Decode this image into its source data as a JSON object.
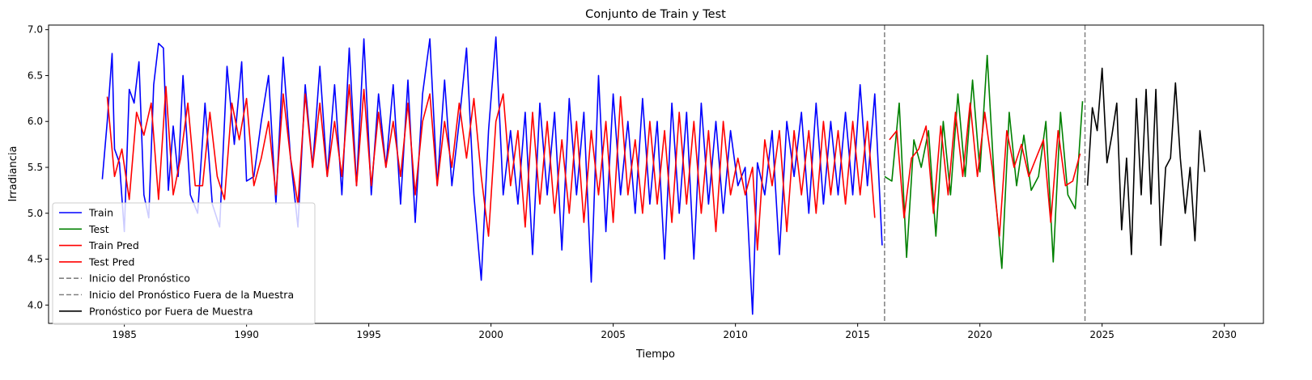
{
  "chart_data": {
    "type": "line",
    "title": "Conjunto de Train y Test",
    "xlabel": "Tiempo",
    "ylabel": "Irradiancia",
    "xlim": [
      1981.9,
      2031.6
    ],
    "ylim": [
      3.8,
      7.05
    ],
    "xticks": [
      1985,
      1990,
      1995,
      2000,
      2005,
      2010,
      2015,
      2020,
      2025,
      2030
    ],
    "yticks": [
      4.0,
      4.5,
      5.0,
      5.5,
      6.0,
      6.5,
      7.0
    ],
    "grid": false,
    "legend_position": "lower-left",
    "series": [
      {
        "name": "Train",
        "color": "#0000ff",
        "x": [
          1984.1,
          1984.3,
          1984.5,
          1984.6,
          1984.8,
          1985.0,
          1985.2,
          1985.4,
          1985.6,
          1985.8,
          1986.0,
          1986.2,
          1986.4,
          1986.6,
          1986.8,
          1987.0,
          1987.2,
          1987.4,
          1987.7,
          1988.0,
          1988.3,
          1988.6,
          1988.9,
          1989.2,
          1989.5,
          1989.8,
          1990.0,
          1990.3,
          1990.6,
          1990.9,
          1991.2,
          1991.5,
          1991.8,
          1992.1,
          1992.4,
          1992.7,
          1993.0,
          1993.3,
          1993.6,
          1993.9,
          1994.2,
          1994.5,
          1994.8,
          1995.1,
          1995.4,
          1995.7,
          1996.0,
          1996.3,
          1996.6,
          1996.9,
          1997.2,
          1997.5,
          1997.8,
          1998.1,
          1998.4,
          1998.7,
          1999.0,
          1999.3,
          1999.6,
          1999.9,
          2000.2,
          2000.5,
          2000.8,
          2001.1,
          2001.4,
          2001.7,
          2002.0,
          2002.3,
          2002.6,
          2002.9,
          2003.2,
          2003.5,
          2003.8,
          2004.1,
          2004.4,
          2004.7,
          2005.0,
          2005.3,
          2005.6,
          2005.9,
          2006.2,
          2006.5,
          2006.8,
          2007.1,
          2007.4,
          2007.7,
          2008.0,
          2008.3,
          2008.6,
          2008.9,
          2009.2,
          2009.5,
          2009.8,
          2010.1,
          2010.4,
          2010.7,
          2010.9,
          2011.2,
          2011.5,
          2011.8,
          2012.1,
          2012.4,
          2012.7,
          2013.0,
          2013.3,
          2013.6,
          2013.9,
          2014.2,
          2014.5,
          2014.8,
          2015.1,
          2015.4,
          2015.7,
          2016.0
        ],
        "y": [
          5.37,
          6.0,
          6.74,
          5.7,
          5.55,
          4.8,
          6.35,
          6.2,
          6.65,
          5.2,
          4.95,
          6.4,
          6.85,
          6.8,
          5.25,
          5.95,
          5.4,
          6.5,
          5.2,
          5.0,
          6.2,
          5.1,
          4.85,
          6.6,
          5.75,
          6.65,
          5.35,
          5.4,
          6.0,
          6.5,
          5.1,
          6.7,
          5.6,
          4.85,
          6.4,
          5.5,
          6.6,
          5.4,
          6.4,
          5.2,
          6.8,
          5.3,
          6.9,
          5.2,
          6.3,
          5.5,
          6.4,
          5.1,
          6.45,
          4.9,
          6.3,
          6.9,
          5.3,
          6.45,
          5.3,
          6.0,
          6.8,
          5.2,
          4.27,
          5.9,
          6.92,
          5.2,
          5.9,
          5.1,
          6.1,
          4.55,
          6.2,
          5.2,
          6.1,
          4.6,
          6.25,
          5.2,
          6.1,
          4.25,
          6.5,
          4.8,
          6.3,
          5.2,
          6.0,
          5.0,
          6.25,
          5.1,
          6.0,
          4.5,
          6.2,
          5.0,
          6.1,
          4.5,
          6.2,
          5.1,
          6.0,
          5.0,
          5.9,
          5.3,
          5.5,
          3.9,
          5.55,
          5.2,
          5.9,
          4.55,
          6.0,
          5.4,
          6.1,
          5.0,
          6.2,
          5.1,
          6.0,
          5.2,
          6.1,
          5.2,
          6.4,
          5.3,
          6.3,
          4.65
        ]
      },
      {
        "name": "Test",
        "color": "#008000",
        "x": [
          2016.1,
          2016.4,
          2016.7,
          2017.0,
          2017.3,
          2017.6,
          2017.9,
          2018.2,
          2018.5,
          2018.8,
          2019.1,
          2019.4,
          2019.7,
          2020.0,
          2020.3,
          2020.6,
          2020.9,
          2021.2,
          2021.5,
          2021.8,
          2022.1,
          2022.4,
          2022.7,
          2023.0,
          2023.3,
          2023.6,
          2023.9,
          2024.2
        ],
        "y": [
          5.4,
          5.35,
          6.2,
          4.52,
          5.8,
          5.5,
          5.9,
          4.75,
          6.0,
          5.2,
          6.3,
          5.4,
          6.45,
          5.45,
          6.72,
          5.3,
          4.4,
          6.1,
          5.3,
          5.85,
          5.25,
          5.4,
          6.0,
          4.47,
          6.1,
          5.2,
          5.05,
          6.22
        ]
      },
      {
        "name": "Train Pred",
        "color": "#ff0000",
        "x": [
          1984.3,
          1984.6,
          1984.9,
          1985.2,
          1985.5,
          1985.8,
          1986.1,
          1986.4,
          1986.7,
          1987.0,
          1987.3,
          1987.6,
          1987.9,
          1988.2,
          1988.5,
          1988.8,
          1989.1,
          1989.4,
          1989.7,
          1990.0,
          1990.3,
          1990.6,
          1990.9,
          1991.2,
          1991.5,
          1991.8,
          1992.1,
          1992.4,
          1992.7,
          1993.0,
          1993.3,
          1993.6,
          1993.9,
          1994.2,
          1994.5,
          1994.8,
          1995.1,
          1995.4,
          1995.7,
          1996.0,
          1996.3,
          1996.6,
          1996.9,
          1997.2,
          1997.5,
          1997.8,
          1998.1,
          1998.4,
          1998.7,
          1999.0,
          1999.3,
          1999.6,
          1999.9,
          2000.2,
          2000.5,
          2000.8,
          2001.1,
          2001.4,
          2001.7,
          2002.0,
          2002.3,
          2002.6,
          2002.9,
          2003.2,
          2003.5,
          2003.8,
          2004.1,
          2004.4,
          2004.7,
          2005.0,
          2005.3,
          2005.6,
          2005.9,
          2006.2,
          2006.5,
          2006.8,
          2007.1,
          2007.4,
          2007.7,
          2008.0,
          2008.3,
          2008.6,
          2008.9,
          2009.2,
          2009.5,
          2009.8,
          2010.1,
          2010.4,
          2010.7,
          2010.9,
          2011.2,
          2011.5,
          2011.8,
          2012.1,
          2012.4,
          2012.7,
          2013.0,
          2013.3,
          2013.6,
          2013.9,
          2014.2,
          2014.5,
          2014.8,
          2015.1,
          2015.4,
          2015.7
        ],
        "y": [
          6.27,
          5.4,
          5.7,
          5.15,
          6.1,
          5.85,
          6.2,
          5.15,
          6.38,
          5.2,
          5.6,
          6.2,
          5.3,
          5.3,
          6.1,
          5.4,
          5.15,
          6.2,
          5.8,
          6.25,
          5.3,
          5.6,
          6.0,
          5.2,
          6.3,
          5.6,
          5.1,
          6.3,
          5.5,
          6.2,
          5.4,
          6.0,
          5.4,
          6.4,
          5.3,
          6.35,
          5.3,
          6.1,
          5.5,
          6.0,
          5.4,
          6.2,
          5.2,
          6.0,
          6.3,
          5.3,
          6.0,
          5.5,
          6.2,
          5.6,
          6.25,
          5.4,
          4.75,
          6.0,
          6.3,
          5.3,
          5.9,
          4.85,
          6.1,
          5.1,
          6.0,
          5.0,
          5.8,
          5.0,
          6.0,
          4.9,
          5.9,
          5.2,
          6.0,
          4.9,
          6.27,
          5.2,
          5.8,
          5.0,
          6.0,
          5.1,
          5.9,
          4.9,
          6.1,
          5.1,
          6.0,
          5.0,
          5.9,
          4.8,
          6.0,
          5.2,
          5.6,
          5.2,
          5.5,
          4.6,
          5.8,
          5.3,
          5.9,
          4.8,
          5.9,
          5.2,
          5.9,
          5.0,
          6.0,
          5.2,
          5.9,
          5.1,
          6.0,
          5.2,
          6.0,
          4.95
        ]
      },
      {
        "name": "Test Pred",
        "color": "#ff0000",
        "x": [
          2016.3,
          2016.6,
          2016.9,
          2017.2,
          2017.5,
          2017.8,
          2018.1,
          2018.4,
          2018.7,
          2019.0,
          2019.3,
          2019.6,
          2019.9,
          2020.2,
          2020.5,
          2020.8,
          2021.1,
          2021.4,
          2021.7,
          2022.0,
          2022.3,
          2022.6,
          2022.9,
          2023.2,
          2023.5,
          2023.8,
          2024.1
        ],
        "y": [
          5.8,
          5.9,
          4.95,
          5.6,
          5.7,
          5.95,
          5.0,
          5.95,
          5.2,
          6.1,
          5.4,
          6.2,
          5.4,
          6.1,
          5.5,
          4.75,
          5.9,
          5.5,
          5.75,
          5.4,
          5.6,
          5.8,
          4.9,
          5.9,
          5.3,
          5.35,
          5.65
        ]
      },
      {
        "name": "Pronóstico por Fuera de Muestra",
        "color": "#000000",
        "x": [
          2024.4,
          2024.6,
          2024.8,
          2025.0,
          2025.2,
          2025.4,
          2025.6,
          2025.8,
          2026.0,
          2026.2,
          2026.4,
          2026.6,
          2026.8,
          2027.0,
          2027.2,
          2027.4,
          2027.6,
          2027.8,
          2028.0,
          2028.2,
          2028.4,
          2028.6,
          2028.8,
          2029.0,
          2029.2
        ],
        "y": [
          5.3,
          6.15,
          5.9,
          6.58,
          5.55,
          5.85,
          6.2,
          4.82,
          5.6,
          4.55,
          6.25,
          5.2,
          6.35,
          5.1,
          6.35,
          4.65,
          5.5,
          5.6,
          6.42,
          5.6,
          5.0,
          5.5,
          4.7,
          5.9,
          5.45
        ]
      }
    ],
    "vlines": [
      {
        "name": "Inicio del Pronóstico",
        "x": 2016.1,
        "color": "#808080",
        "style": "dashed"
      },
      {
        "name": "Inicio del Pronóstico Fuera de la Muestra",
        "x": 2024.3,
        "color": "#808080",
        "style": "dashed"
      }
    ],
    "legend": [
      {
        "label": "Train",
        "color": "#0000ff",
        "style": "solid"
      },
      {
        "label": "Test",
        "color": "#008000",
        "style": "solid"
      },
      {
        "label": "Train Pred",
        "color": "#ff0000",
        "style": "solid"
      },
      {
        "label": "Test Pred",
        "color": "#ff0000",
        "style": "solid"
      },
      {
        "label": "Inicio del Pronóstico",
        "color": "#808080",
        "style": "dashed"
      },
      {
        "label": "Inicio del Pronóstico Fuera de la Muestra",
        "color": "#808080",
        "style": "dashed"
      },
      {
        "label": "Pronóstico por Fuera de Muestra",
        "color": "#000000",
        "style": "solid"
      }
    ]
  }
}
